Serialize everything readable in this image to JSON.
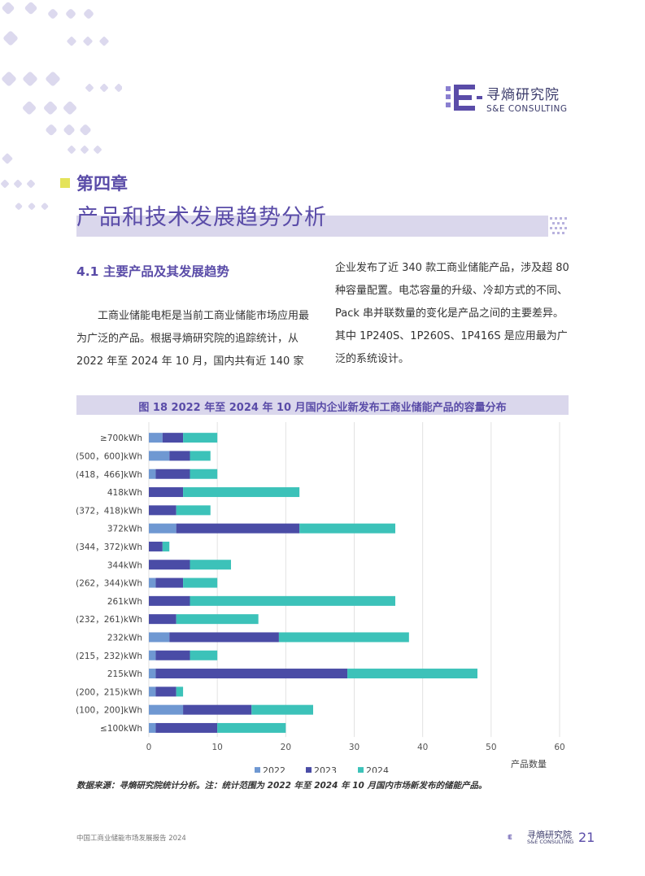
{
  "brand": {
    "name_cn": "寻熵研究院",
    "name_en": "S&E CONSULTING"
  },
  "chapter": {
    "label": "第四章",
    "title": "产品和技术发展趋势分析"
  },
  "section": {
    "title": "4.1 主要产品及其发展趋势"
  },
  "paragraph": {
    "left": "工商业储能电柜是当前工商业储能市场应用最为广泛的产品。根据寻熵研究院的追踪统计，从 2022 年至 2024 年 10 月，国内共有近 140 家",
    "right": "企业发布了近 340 款工商业储能产品，涉及超 80 种容量配置。电芯容量的升级、冷却方式的不同、Pack 串并联数量的变化是产品之间的主要差异。其中 1P240S、1P260S、1P416S 是应用最为广泛的系统设计。"
  },
  "figure": {
    "title": "图 18 2022 年至 2024 年 10 月国内企业新发布工商业储能产品的容量分布"
  },
  "chart_data": {
    "type": "bar",
    "orientation": "horizontal",
    "stacked": true,
    "categories": [
      "≥700kWh",
      "(500，600]kWh",
      "(418，466]kWh",
      "418kWh",
      "(372，418)kWh",
      "372kWh",
      "(344，372)kWh",
      "344kWh",
      "(262，344)kWh",
      "261kWh",
      "(232，261)kWh",
      "232kWh",
      "(215，232)kWh",
      "215kWh",
      "(200，215)kWh",
      "(100，200]kWh",
      "≤100kWh"
    ],
    "series": [
      {
        "name": "2022",
        "color": "#6f98d2",
        "values": [
          2,
          3,
          1,
          0,
          0,
          4,
          0,
          0,
          1,
          0,
          0,
          3,
          1,
          1,
          1,
          5,
          1
        ]
      },
      {
        "name": "2023",
        "color": "#4a4ca6",
        "values": [
          3,
          3,
          5,
          5,
          4,
          18,
          2,
          6,
          4,
          6,
          4,
          16,
          5,
          28,
          3,
          10,
          9
        ]
      },
      {
        "name": "2024",
        "color": "#3cc2b9",
        "values": [
          5,
          3,
          4,
          17,
          5,
          14,
          1,
          6,
          5,
          30,
          12,
          19,
          4,
          19,
          1,
          9,
          10
        ]
      }
    ],
    "x_ticks": [
      "0",
      "10",
      "20",
      "30",
      "40",
      "50",
      "60"
    ],
    "xlim": [
      0,
      60
    ],
    "xlabel": "产品数量",
    "ylabel": "",
    "grid": "vertical",
    "legend_position": "bottom"
  },
  "source_note": "数据来源：寻熵研究院统计分析。注：统计范围为 2022 年至 2024 年 10 月国内市场新发布的储能产品。",
  "footer": {
    "report_title": "中国工商业储能市场发展报告 2024",
    "page_number": "21"
  }
}
